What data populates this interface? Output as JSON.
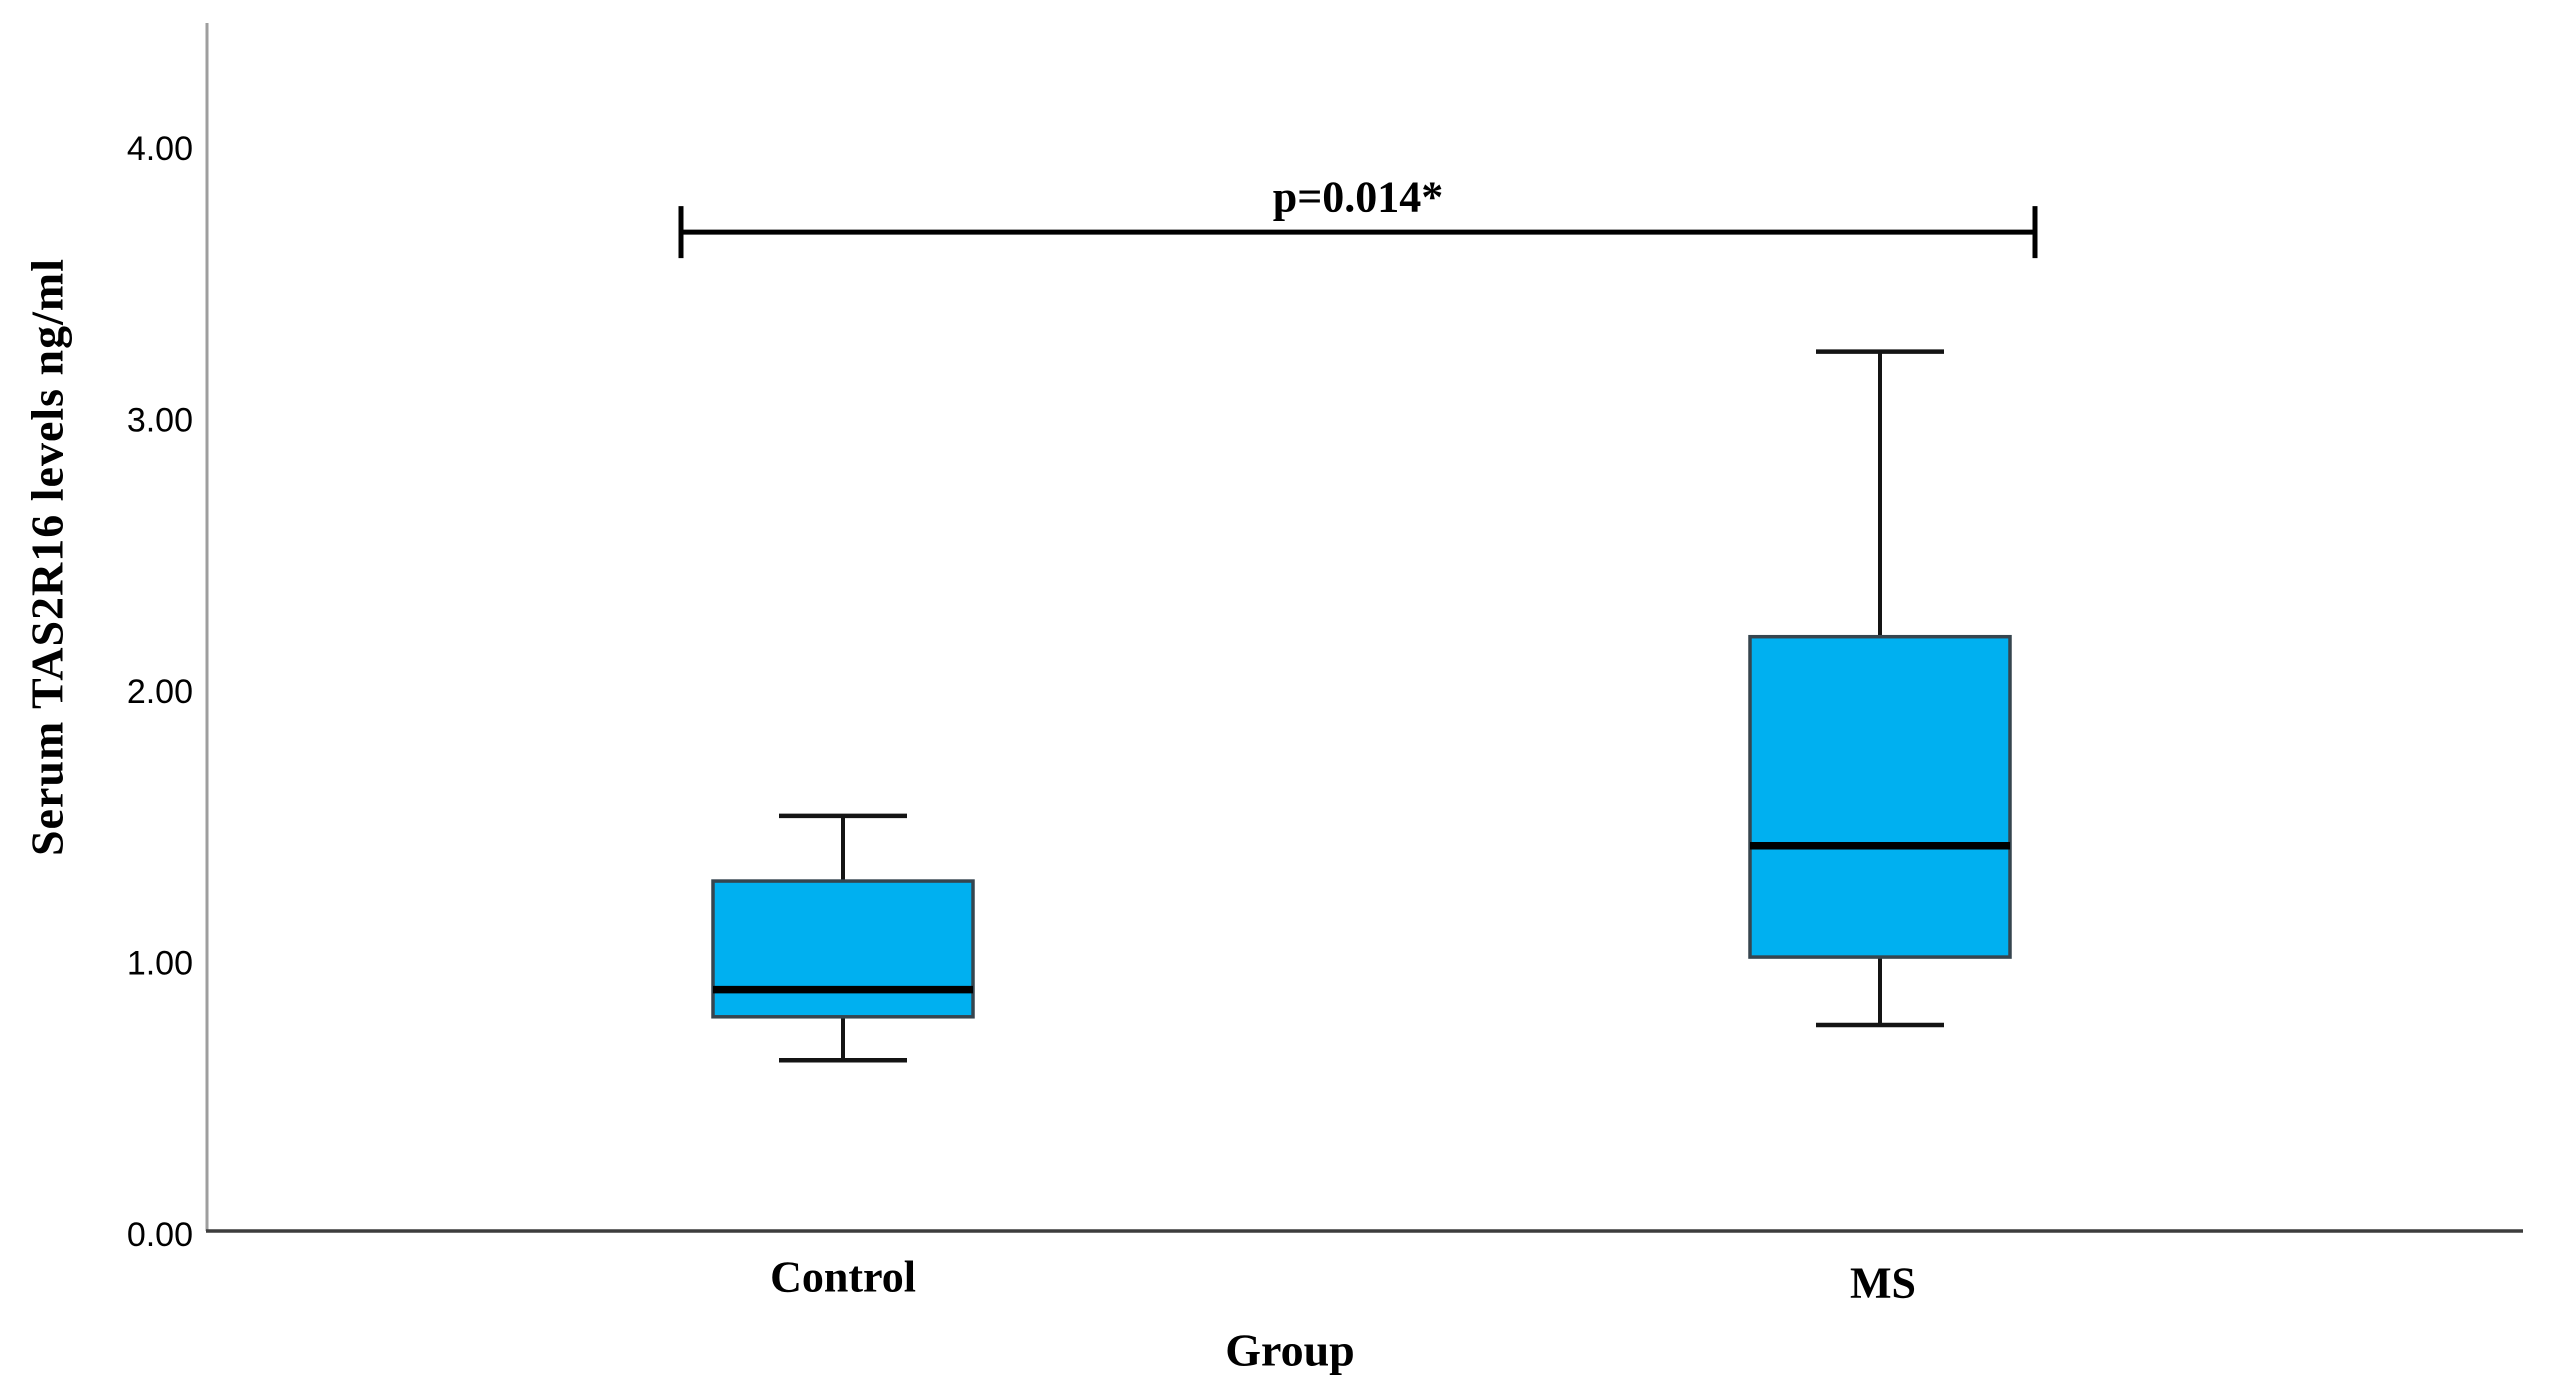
{
  "figure": {
    "background": "#ffffff",
    "plot_frame": {
      "y_axis_line_color": "#9e9e9e",
      "x_axis_line_color": "#3d3d3d"
    }
  },
  "chart_data": {
    "type": "boxplot",
    "title": "",
    "xlabel": "Group",
    "ylabel": "Serum TAS2R16 levels ng/ml",
    "ylim": [
      0,
      4.45
    ],
    "yticks": [
      0,
      1,
      2,
      3,
      4
    ],
    "ytick_labels": [
      "0.00",
      "1.00",
      "2.00",
      "3.00",
      "4.00"
    ],
    "categories": [
      "Control",
      "MS"
    ],
    "series": [
      {
        "name": "Control",
        "whisker_low": 0.64,
        "q1": 0.8,
        "median": 0.9,
        "q3": 1.3,
        "whisker_high": 1.54
      },
      {
        "name": "MS",
        "whisker_low": 0.77,
        "q1": 1.02,
        "median": 1.43,
        "q3": 2.2,
        "whisker_high": 3.25
      }
    ],
    "significance": {
      "label": "p=0.014*",
      "y_value": 3.69,
      "from": "Control",
      "to": "MS"
    },
    "colors": {
      "box_fill": "#00B0F0",
      "box_border": "#36454f",
      "median_line": "#000000",
      "whisker": "#141414",
      "bracket": "#000000",
      "text": "#000000"
    },
    "grid": false,
    "legend": false
  }
}
